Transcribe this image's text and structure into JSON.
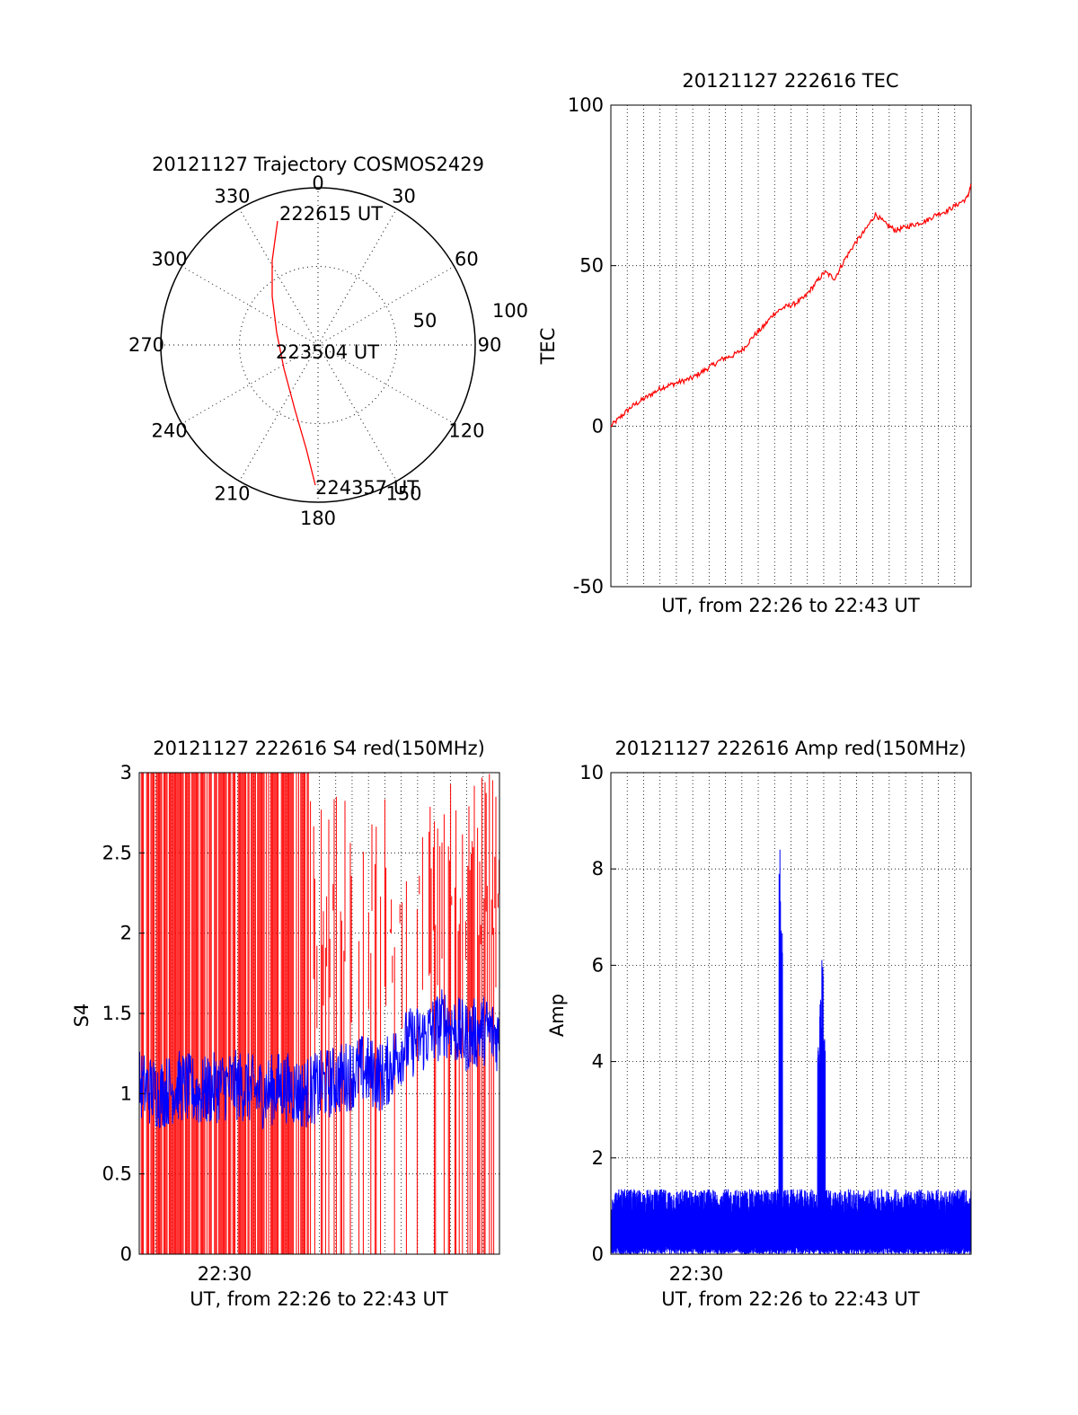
{
  "chart_data": [
    {
      "type": "polar",
      "title": "20121127 Trajectory COSMOS2429",
      "azimuth_labels": [
        "0",
        "30",
        "60",
        "90",
        "120",
        "150",
        "180",
        "210",
        "240",
        "270",
        "300",
        "330"
      ],
      "radial_labels": [
        "50",
        "100"
      ],
      "series": [
        {
          "color": "#ff0000",
          "points": [
            {
              "azimuth": 342,
              "elevation": 10
            },
            {
              "azimuth": 330,
              "elevation": 30
            },
            {
              "azimuth": 305,
              "elevation": 50
            },
            {
              "azimuth": 270,
              "elevation": 60
            },
            {
              "azimuth": 238,
              "elevation": 50
            },
            {
              "azimuth": 215,
              "elevation": 30
            },
            {
              "azimuth": 200,
              "elevation": 10
            },
            {
              "azimuth": 180,
              "elevation": 0
            }
          ]
        }
      ],
      "annotations": [
        {
          "text": "222615 UT"
        },
        {
          "text": "223504 UT"
        },
        {
          "text": "224357 UT"
        }
      ]
    },
    {
      "type": "line",
      "title": "20121127 222616 TEC",
      "xlabel": "UT, from 22:26 to 22:43 UT",
      "ylabel": "TEC",
      "ylim": [
        -50,
        100
      ],
      "yticks": [
        "100",
        "50",
        "0",
        "-50"
      ],
      "xlim_minutes": [
        0,
        17.7
      ],
      "grid": true,
      "series": [
        {
          "color": "#ff0000",
          "x": [
            0,
            0.5,
            1,
            1.5,
            2,
            2.5,
            3,
            3.5,
            4,
            4.5,
            5,
            5.5,
            6,
            6.5,
            7,
            7.5,
            8,
            8.5,
            9,
            9.5,
            10,
            10.5,
            11,
            11.5,
            12,
            12.5,
            13,
            13.5,
            14,
            14.5,
            15,
            15.5,
            16,
            16.5,
            17,
            17.5,
            17.7
          ],
          "y": [
            0,
            3,
            6,
            8,
            10,
            12,
            13,
            14,
            15,
            17,
            19,
            21,
            22,
            24,
            28,
            31,
            35,
            37,
            38,
            40,
            44,
            48,
            46,
            52,
            57,
            61,
            66,
            63,
            61,
            62,
            63,
            64,
            66,
            67,
            69,
            71,
            75
          ]
        }
      ]
    },
    {
      "type": "line",
      "title": "20121127 222616 S4 red(150MHz)",
      "xlabel": "UT, from 22:26 to 22:43 UT",
      "ylabel": "S4",
      "ylim": [
        0,
        3
      ],
      "yticks": [
        "3",
        "2.5",
        "2",
        "1.5",
        "1",
        "0.5",
        "0"
      ],
      "xticks": [
        {
          "label": "22:30",
          "x": 4
        }
      ],
      "xlim_minutes": [
        0,
        17.7
      ],
      "grid": true,
      "series": [
        {
          "color": "#0000ff",
          "x": [
            0,
            1,
            2,
            3,
            4,
            5,
            6,
            7,
            8,
            9,
            10,
            11,
            12,
            13,
            14,
            15,
            16,
            17,
            17.7
          ],
          "y": [
            1.05,
            1.0,
            1.05,
            1.0,
            1.05,
            1.05,
            1.0,
            1.05,
            1.0,
            1.05,
            1.1,
            1.15,
            1.1,
            1.3,
            1.35,
            1.45,
            1.35,
            1.4,
            1.35
          ]
        }
      ]
    },
    {
      "type": "line",
      "title": "20121127 222616 Amp red(150MHz)",
      "xlabel": "UT, from 22:26 to 22:43 UT",
      "ylabel": "Amp",
      "ylim": [
        0,
        10
      ],
      "yticks": [
        "10",
        "8",
        "6",
        "4",
        "2",
        "0"
      ],
      "xticks": [
        {
          "label": "22:30",
          "x": 4
        }
      ],
      "xlim_minutes": [
        0,
        17.7
      ],
      "grid": true,
      "series": [
        {
          "color": "#0000ff",
          "peaks": [
            {
              "x": 8.3,
              "y": 8.5
            },
            {
              "x": 8.4,
              "y": 7.0
            },
            {
              "x": 10.2,
              "y": 4.5
            },
            {
              "x": 10.3,
              "y": 5.3
            },
            {
              "x": 10.4,
              "y": 6.2
            },
            {
              "x": 10.5,
              "y": 4.6
            }
          ],
          "baseline": 0.8
        }
      ]
    }
  ]
}
